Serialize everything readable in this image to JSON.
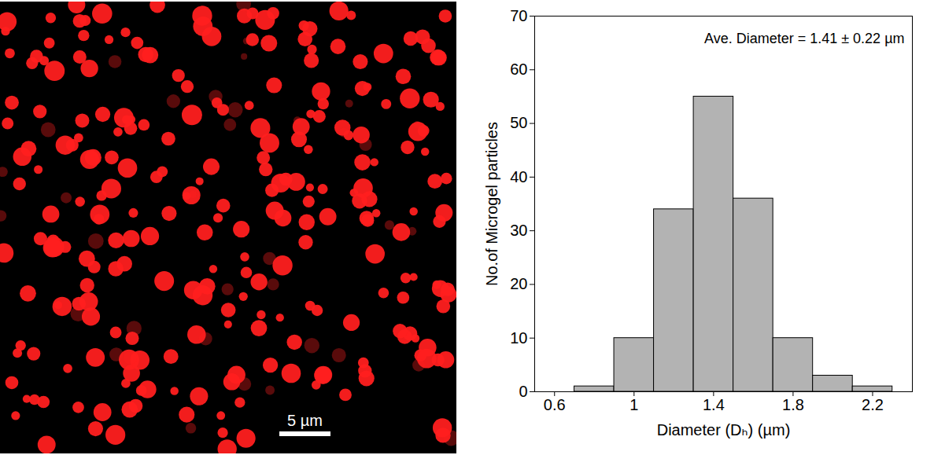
{
  "image": {
    "scale_bar_label": "5 µm"
  },
  "chart_data": {
    "type": "histogram",
    "annotation": "Ave. Diameter = 1.41 ± 0.22 µm",
    "xlabel": "Diameter (Dₕ) (µm)",
    "ylabel": "No.of Microgel particles",
    "bins": [
      0.7,
      0.9,
      1.1,
      1.3,
      1.5,
      1.7,
      1.9,
      2.1,
      2.3
    ],
    "counts": [
      1,
      10,
      34,
      55,
      36,
      10,
      3,
      1
    ],
    "color": "#b3b3b3",
    "xlim": [
      0.5,
      2.4
    ],
    "xticks": [
      0.6,
      1,
      1.4,
      1.8,
      2.2
    ],
    "ylim": [
      0,
      70
    ],
    "yticks": [
      0,
      10,
      20,
      30,
      40,
      50,
      60,
      70
    ]
  }
}
